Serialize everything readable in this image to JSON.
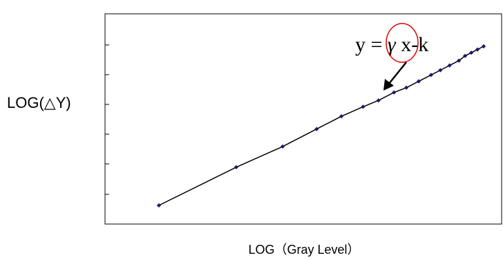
{
  "chart_data": {
    "type": "line",
    "title": "",
    "xlabel": "LOG（Gray Level）",
    "ylabel": "LOG(△Y)",
    "grid": false,
    "legend": "none",
    "x_ticks_labeled": false,
    "y_ticks_labeled": false,
    "series": [
      {
        "points": [
          [
            0.0,
            0.0
          ],
          [
            0.25,
            0.24
          ],
          [
            0.4,
            0.37
          ],
          [
            0.51,
            0.48
          ],
          [
            0.59,
            0.56
          ],
          [
            0.66,
            0.62
          ],
          [
            0.71,
            0.66
          ],
          [
            0.76,
            0.71
          ],
          [
            0.8,
            0.74
          ],
          [
            0.84,
            0.78
          ],
          [
            0.88,
            0.82
          ],
          [
            0.91,
            0.85
          ],
          [
            0.94,
            0.88
          ],
          [
            0.97,
            0.91
          ],
          [
            0.99,
            0.94
          ],
          [
            1.01,
            0.96
          ],
          [
            1.03,
            0.98
          ],
          [
            1.05,
            1.0
          ]
        ]
      }
    ],
    "annotation": {
      "text_prefix": "y = ",
      "symbol": "γ",
      "text_suffix": " x-k"
    },
    "colors": {
      "line": "#000000",
      "marker": "#1a1a6e",
      "highlight_circle": "#e00000"
    }
  }
}
